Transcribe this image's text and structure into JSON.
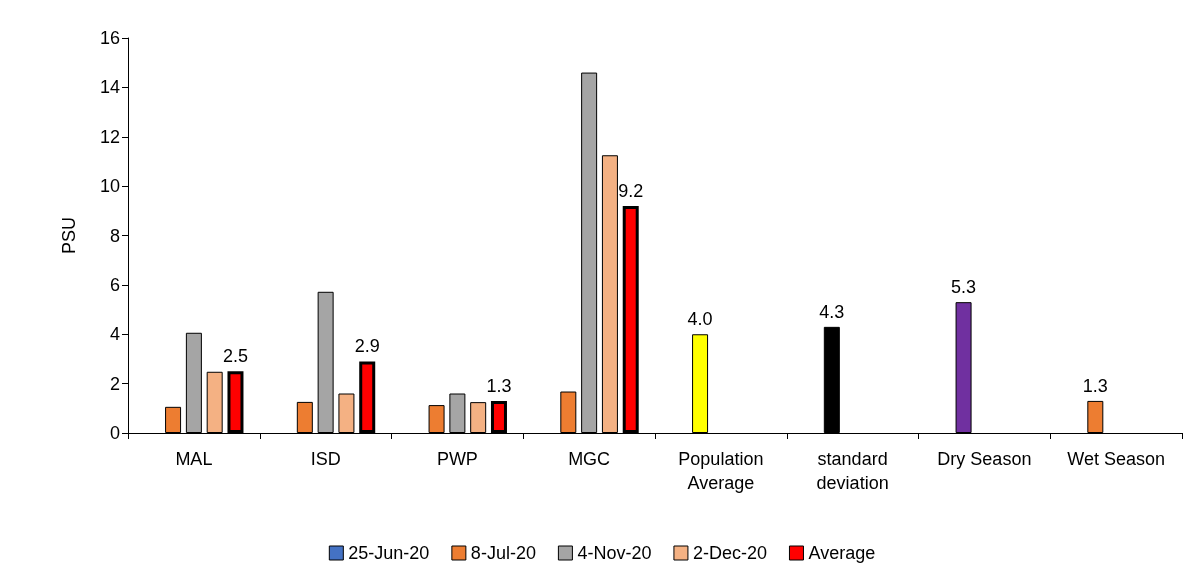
{
  "chart_data": {
    "type": "bar",
    "ylabel": "PSU",
    "categories": [
      "MAL",
      "ISD",
      "PWP",
      "MGC",
      "Population\nAverage",
      "standard\ndeviation",
      "Dry Season",
      "Wet Season"
    ],
    "series": [
      {
        "name": "25-Jun-20",
        "color": "#4472c4",
        "values": [
          null,
          null,
          null,
          null,
          null,
          null,
          null,
          null
        ]
      },
      {
        "name": "8-Jul-20",
        "color": "#ed7d31",
        "values": [
          1.06,
          1.26,
          1.13,
          1.68,
          4.0,
          4.3,
          5.3,
          1.3
        ],
        "colors": [
          "#ed7d31",
          "#ed7d31",
          "#ed7d31",
          "#ed7d31",
          "#ffff00",
          "#000000",
          "#7030a0",
          "#ed7d31"
        ],
        "value_labels": [
          null,
          null,
          null,
          null,
          "4.0",
          "4.3",
          "5.3",
          "1.3"
        ]
      },
      {
        "name": "4-Nov-20",
        "color": "#a5a5a5",
        "values": [
          4.06,
          5.72,
          1.6,
          14.6,
          null,
          null,
          null,
          null
        ]
      },
      {
        "name": "2-Dec-20",
        "color": "#f4b183",
        "values": [
          2.48,
          1.6,
          1.25,
          11.25,
          null,
          null,
          null,
          null
        ]
      },
      {
        "name": "Average",
        "color": "#ff0000",
        "values": [
          2.5,
          2.9,
          1.3,
          9.2,
          null,
          null,
          null,
          null
        ],
        "value_labels": [
          "2.5",
          "2.9",
          "1.3",
          "9.2",
          null,
          null,
          null,
          null
        ]
      }
    ],
    "ylim": [
      0,
      16
    ],
    "yticks": [
      0,
      2,
      4,
      6,
      8,
      10,
      12,
      14,
      16
    ],
    "grid": false,
    "legend": "bottom"
  }
}
